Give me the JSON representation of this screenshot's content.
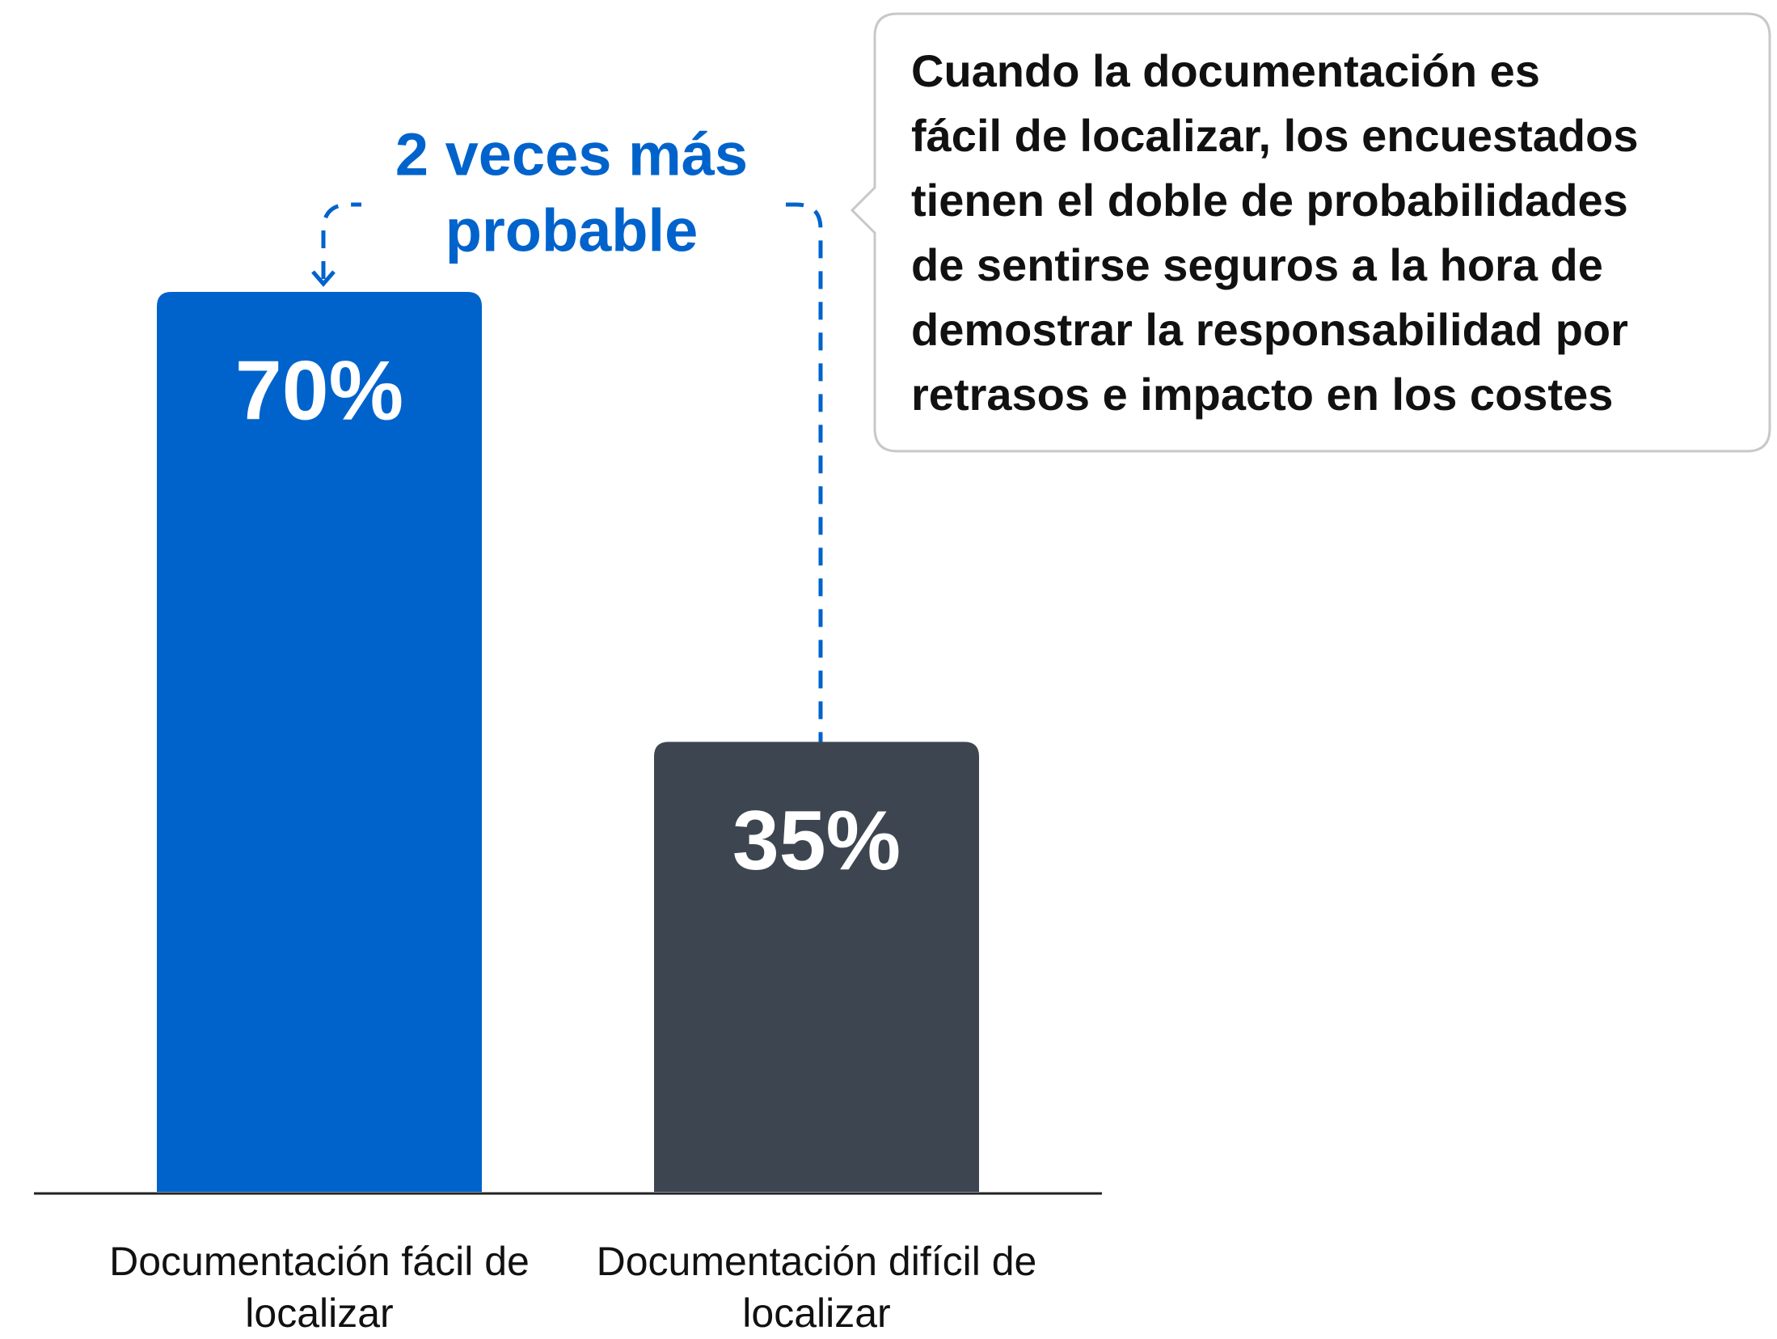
{
  "chart_data": {
    "type": "bar",
    "categories": [
      "Documentación fácil de localizar",
      "Documentación difícil de localizar"
    ],
    "values": [
      70,
      35
    ],
    "value_labels": [
      "70%",
      "35%"
    ],
    "colors": [
      "#0063cc",
      "#3d4650"
    ],
    "annotation": [
      "2 veces más",
      "probable"
    ],
    "callout": [
      "Cuando la documentación es",
      "fácil de localizar, los encuestados",
      "tienen el doble de probabilidades",
      "de sentirse seguros a la hora de",
      "demostrar la responsabilidad por",
      "retrasos e impacto en los costes"
    ]
  }
}
